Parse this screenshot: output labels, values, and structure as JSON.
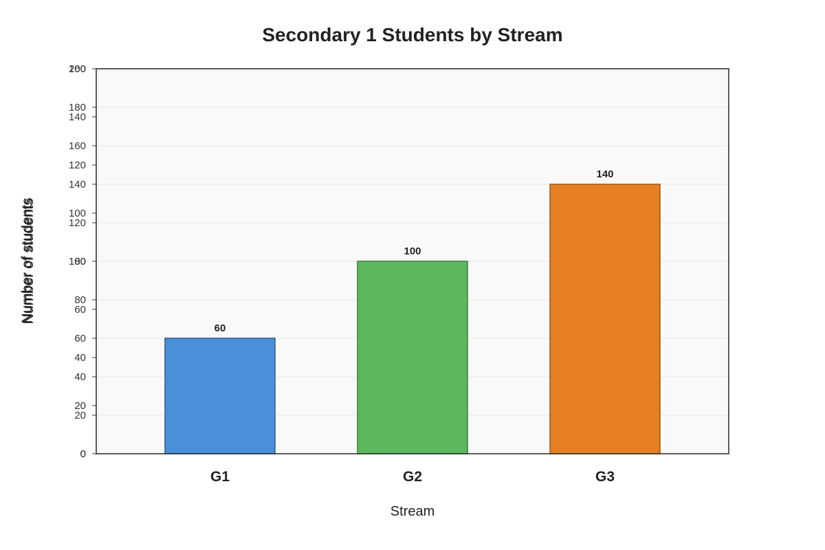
{
  "chart_data": {
    "type": "bar",
    "title": "Secondary 1 Students by Stream",
    "xlabel": "Stream",
    "ylabel": "Number of students",
    "categories": [
      "G1",
      "G2",
      "G3"
    ],
    "values": [
      60,
      100,
      140
    ],
    "data_labels": [
      "60",
      "100",
      "140"
    ],
    "ylim": [
      0,
      200
    ],
    "yticks": [
      0,
      20,
      40,
      60,
      80,
      100,
      120,
      140,
      160,
      180,
      200
    ],
    "overlapped_ytick_labels": [
      "0",
      "20",
      "40",
      "60",
      "80",
      "100",
      "120",
      "140",
      "160",
      "180",
      "200"
    ],
    "secondary_ylim": [
      0,
      160
    ],
    "secondary_yticks": [
      0,
      20,
      40,
      60,
      80,
      100,
      120,
      140,
      160
    ],
    "secondary_ytick_labels": [
      "0",
      "20",
      "40",
      "60",
      "80",
      "100",
      "120",
      "140",
      "160"
    ],
    "grid": true,
    "colors": {
      "bars": [
        "#4a90d9",
        "#5cb85c",
        "#e67e22"
      ],
      "bar_edges": [
        "#2c5a87",
        "#3a7a3a",
        "#a0571a"
      ],
      "plot_bg": "#f9f9f9",
      "grid": "#e6e6e6",
      "axis": "#333333"
    }
  }
}
